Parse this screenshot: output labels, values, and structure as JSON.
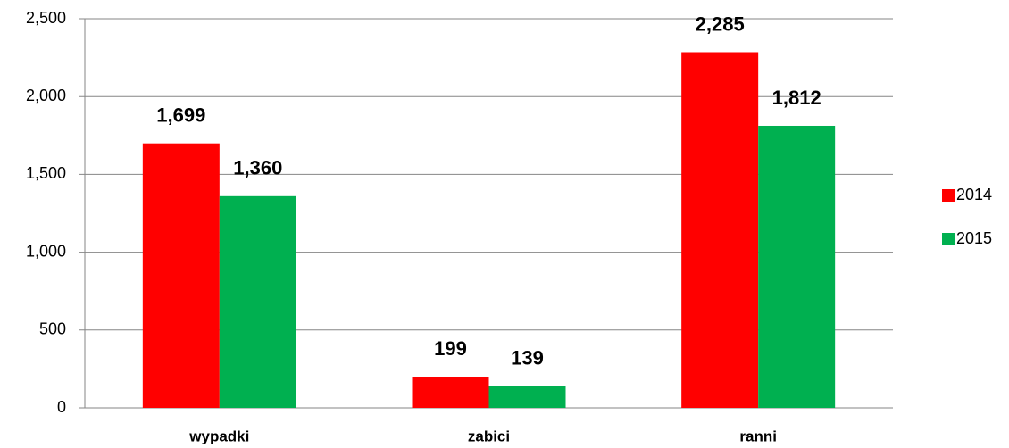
{
  "chart_data": {
    "type": "bar",
    "categories": [
      "wypadki",
      "zabici",
      "ranni"
    ],
    "series": [
      {
        "name": "2014",
        "color": "#ff0000",
        "values": [
          1699,
          199,
          2285
        ],
        "value_labels": [
          "1,699",
          "199",
          "2,285"
        ]
      },
      {
        "name": "2015",
        "color": "#00b050",
        "values": [
          1360,
          139,
          1812
        ],
        "value_labels": [
          "1,360",
          "139",
          "1,812"
        ]
      }
    ],
    "ylim": [
      0,
      2500
    ],
    "yticks": [
      0,
      500,
      {
        "value": 1000,
        "label": "1,000"
      },
      {
        "value": 1500,
        "label": "1,500"
      },
      {
        "value": 2000,
        "label": "2,000"
      },
      {
        "value": 2500,
        "label": "2,500"
      }
    ],
    "grid": true,
    "legend": "right"
  }
}
